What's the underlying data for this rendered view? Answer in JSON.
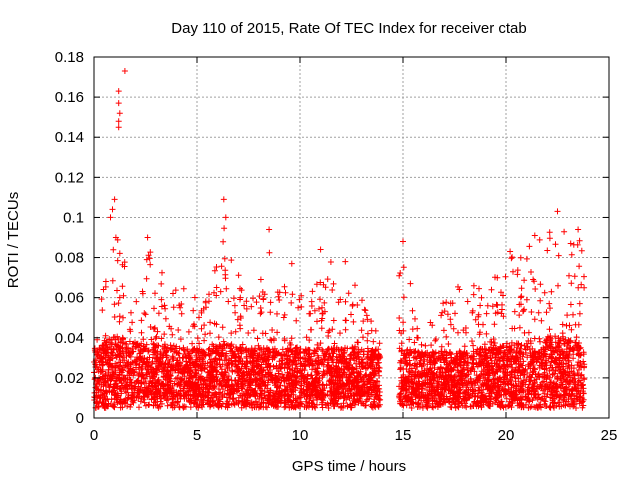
{
  "chart_data": {
    "type": "scatter",
    "title": "Day 110 of 2015, Rate Of TEC Index for receiver ctab",
    "xlabel": "GPS time / hours",
    "ylabel": "ROTI / TECUs",
    "xlim": [
      0,
      25
    ],
    "ylim": [
      0,
      0.18
    ],
    "xticks": [
      0,
      5,
      10,
      15,
      20,
      25
    ],
    "xtick_labels": [
      "0",
      "5",
      "10",
      "15",
      "20",
      "25"
    ],
    "yticks": [
      0,
      0.02,
      0.04,
      0.06,
      0.08,
      0.1,
      0.12,
      0.14,
      0.16,
      0.18
    ],
    "ytick_labels": [
      "0",
      "0.02",
      "0.04",
      "0.06",
      "0.08",
      "0.1",
      "0.12",
      "0.14",
      "0.16",
      "0.18"
    ],
    "grid": true,
    "marker": "+",
    "color": "#ff0000",
    "data_gap_hours": [
      13.9,
      14.8
    ],
    "series": [
      {
        "name": "ROTI",
        "highlight_points": [
          {
            "x": 1.5,
            "y": 0.173
          },
          {
            "x": 1.2,
            "y": 0.163
          },
          {
            "x": 1.2,
            "y": 0.157
          },
          {
            "x": 1.25,
            "y": 0.152
          },
          {
            "x": 1.2,
            "y": 0.148
          },
          {
            "x": 1.2,
            "y": 0.145
          },
          {
            "x": 1.0,
            "y": 0.109
          },
          {
            "x": 0.9,
            "y": 0.104
          },
          {
            "x": 0.8,
            "y": 0.1
          },
          {
            "x": 6.3,
            "y": 0.109
          },
          {
            "x": 6.4,
            "y": 0.1
          },
          {
            "x": 22.5,
            "y": 0.103
          },
          {
            "x": 8.5,
            "y": 0.094
          },
          {
            "x": 2.6,
            "y": 0.09
          },
          {
            "x": 23.5,
            "y": 0.094
          },
          {
            "x": 21.4,
            "y": 0.091
          },
          {
            "x": 15.0,
            "y": 0.088
          },
          {
            "x": 11.0,
            "y": 0.084
          },
          {
            "x": 9.6,
            "y": 0.077
          },
          {
            "x": 12.2,
            "y": 0.078
          },
          {
            "x": 20.2,
            "y": 0.083
          }
        ],
        "envelope": [
          {
            "x": 0.0,
            "base": 0.02,
            "peak": 0.045
          },
          {
            "x": 0.5,
            "base": 0.02,
            "peak": 0.07
          },
          {
            "x": 1.0,
            "base": 0.025,
            "peak": 0.095
          },
          {
            "x": 2.0,
            "base": 0.02,
            "peak": 0.06
          },
          {
            "x": 2.7,
            "base": 0.02,
            "peak": 0.085
          },
          {
            "x": 3.3,
            "base": 0.02,
            "peak": 0.075
          },
          {
            "x": 4.5,
            "base": 0.018,
            "peak": 0.065
          },
          {
            "x": 5.5,
            "base": 0.018,
            "peak": 0.06
          },
          {
            "x": 6.3,
            "base": 0.02,
            "peak": 0.1
          },
          {
            "x": 7.5,
            "base": 0.018,
            "peak": 0.055
          },
          {
            "x": 8.5,
            "base": 0.018,
            "peak": 0.085
          },
          {
            "x": 9.5,
            "base": 0.018,
            "peak": 0.06
          },
          {
            "x": 11.0,
            "base": 0.018,
            "peak": 0.08
          },
          {
            "x": 12.2,
            "base": 0.018,
            "peak": 0.075
          },
          {
            "x": 13.8,
            "base": 0.018,
            "peak": 0.045
          },
          {
            "x": 14.9,
            "base": 0.018,
            "peak": 0.085
          },
          {
            "x": 16.0,
            "base": 0.016,
            "peak": 0.045
          },
          {
            "x": 17.5,
            "base": 0.016,
            "peak": 0.065
          },
          {
            "x": 19.0,
            "base": 0.018,
            "peak": 0.07
          },
          {
            "x": 20.5,
            "base": 0.02,
            "peak": 0.085
          },
          {
            "x": 22.5,
            "base": 0.025,
            "peak": 0.095
          },
          {
            "x": 23.7,
            "base": 0.02,
            "peak": 0.09
          }
        ]
      }
    ]
  }
}
